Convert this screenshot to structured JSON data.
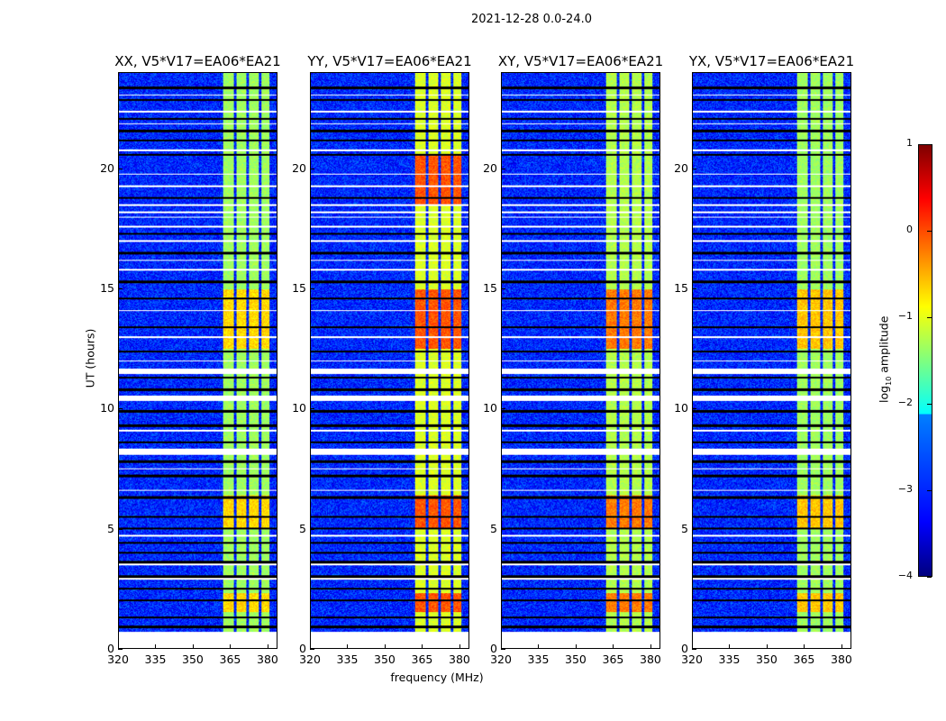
{
  "suptitle": "2021-12-28 0.0-24.0",
  "chart_data": {
    "type": "heatmap",
    "title": "2021-12-28 0.0-24.0",
    "xlabel": "frequency (MHz)",
    "ylabel": "UT (hours)",
    "xlim": [
      320,
      384
    ],
    "ylim": [
      0,
      24
    ],
    "xticks": [
      "320",
      "335",
      "350",
      "365",
      "380"
    ],
    "xtick_values": [
      320,
      335,
      350,
      365,
      380
    ],
    "yticks": [
      "0",
      "5",
      "10",
      "15",
      "20"
    ],
    "ytick_values": [
      0,
      5,
      10,
      15,
      20
    ],
    "panels": [
      {
        "title": "XX, V5*V17=EA06*EA21",
        "band_level": -1.3,
        "peak_level": -0.6
      },
      {
        "title": "YY, V5*V17=EA06*EA21",
        "band_level": -1.0,
        "peak_level": 0.1
      },
      {
        "title": "XY, V5*V17=EA06*EA21",
        "band_level": -1.2,
        "peak_level": -0.1
      },
      {
        "title": "YX, V5*V17=EA06*EA21",
        "band_level": -1.3,
        "peak_level": -0.5
      }
    ],
    "background_level": -3.3,
    "signal_bands_mhz": [
      [
        362,
        366.5
      ],
      [
        367.5,
        371.5
      ],
      [
        372.5,
        376.5
      ],
      [
        377.5,
        381
      ]
    ],
    "flagged_hours": [
      [
        0,
        0.7
      ],
      [
        8.1,
        8.35
      ],
      [
        10.35,
        10.55
      ],
      [
        11.45,
        11.7
      ]
    ],
    "colorbar": {
      "label_prefix": "log",
      "label_sub": "10",
      "label_suffix": " amplitude",
      "ticks": [
        "1",
        "0",
        "−1",
        "−2",
        "−3",
        "−4"
      ],
      "tick_values": [
        1,
        0,
        -1,
        -2,
        -3,
        -4
      ],
      "range": [
        -4,
        1
      ],
      "colormap": "jet"
    }
  }
}
